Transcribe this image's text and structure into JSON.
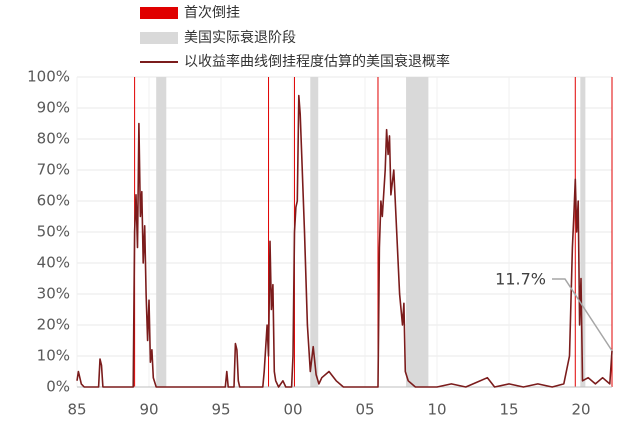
{
  "chart_data": {
    "type": "line",
    "legend": {
      "inversions": "首次倒挂",
      "recessions": "美国实际衰退阶段"
    },
    "inversions": {
      "color": "#e00000",
      "values": [
        1989.0,
        1998.3,
        2000.1,
        2005.9,
        2019.6,
        2022.15
      ]
    },
    "recessions": {
      "color": "#d9d9d9",
      "values": [
        [
          1990.5,
          1991.2
        ],
        [
          2001.2,
          2001.75
        ],
        [
          2007.85,
          2009.4
        ],
        [
          2019.95,
          2020.3
        ]
      ]
    },
    "x": [
      1985.0,
      1985.1,
      1985.3,
      1985.5,
      1986.5,
      1986.6,
      1986.7,
      1986.8,
      1988.9,
      1989.0,
      1989.1,
      1989.2,
      1989.3,
      1989.4,
      1989.5,
      1989.6,
      1989.7,
      1989.8,
      1989.9,
      1990.0,
      1990.1,
      1990.2,
      1990.3,
      1990.5,
      1995.3,
      1995.4,
      1995.5,
      1995.9,
      1996.0,
      1996.1,
      1996.2,
      1996.3,
      1997.9,
      1998.0,
      1998.2,
      1998.3,
      1998.4,
      1998.5,
      1998.6,
      1998.7,
      1998.8,
      1999.0,
      1999.3,
      1999.5,
      1999.9,
      2000.0,
      2000.1,
      2000.2,
      2000.3,
      2000.4,
      2000.5,
      2000.6,
      2000.8,
      2001.0,
      2001.2,
      2001.4,
      2001.6,
      2001.8,
      2002.0,
      2002.5,
      2003.0,
      2003.5,
      2005.9,
      2006.0,
      2006.1,
      2006.2,
      2006.4,
      2006.5,
      2006.6,
      2006.7,
      2006.8,
      2007.0,
      2007.2,
      2007.4,
      2007.6,
      2007.7,
      2007.8,
      2008.0,
      2008.5,
      2010.0,
      2011.0,
      2012.0,
      2013.5,
      2014.0,
      2015.0,
      2016.0,
      2017.0,
      2018.0,
      2018.8,
      2019.2,
      2019.4,
      2019.5,
      2019.6,
      2019.7,
      2019.8,
      2019.9,
      2020.0,
      2020.1,
      2020.5,
      2021.0,
      2021.5,
      2022.0,
      2022.15
    ],
    "series": [
      {
        "name": "以收益率曲线倒挂程度估算的美国衰退概率",
        "color": "#7b1c1c",
        "values": [
          2,
          5,
          1,
          0,
          0,
          9,
          7,
          0,
          0,
          50,
          62,
          45,
          85,
          55,
          63,
          40,
          52,
          30,
          15,
          28,
          8,
          12,
          3,
          0,
          0,
          5,
          0,
          0,
          14,
          12,
          2,
          0,
          0,
          5,
          20,
          10,
          47,
          25,
          33,
          5,
          2,
          0,
          2,
          0,
          0,
          10,
          50,
          58,
          60,
          94,
          88,
          75,
          50,
          20,
          5,
          13,
          4,
          1,
          3,
          5,
          2,
          0,
          0,
          45,
          60,
          55,
          70,
          83,
          75,
          81,
          62,
          70,
          50,
          30,
          20,
          27,
          5,
          2,
          0,
          0,
          1,
          0,
          3,
          0,
          1,
          0,
          1,
          0,
          1,
          10,
          45,
          55,
          67,
          50,
          60,
          20,
          35,
          2,
          3,
          1,
          3,
          1,
          11.7
        ]
      }
    ],
    "annotations": [
      {
        "x": 2022.15,
        "y": 11.7,
        "label": "11.7%"
      }
    ],
    "xlim": [
      1985,
      2022.15
    ],
    "xticks": [
      {
        "value": 1985,
        "label": "85"
      },
      {
        "value": 1990,
        "label": "90"
      },
      {
        "value": 1995,
        "label": "95"
      },
      {
        "value": 2000,
        "label": "00"
      },
      {
        "value": 2005,
        "label": "05"
      },
      {
        "value": 2010,
        "label": "10"
      },
      {
        "value": 2015,
        "label": "15"
      },
      {
        "value": 2020,
        "label": "20"
      }
    ],
    "ylim": [
      0,
      100
    ],
    "yticks": [
      {
        "value": 0,
        "label": "0%"
      },
      {
        "value": 10,
        "label": "10%"
      },
      {
        "value": 20,
        "label": "20%"
      },
      {
        "value": 30,
        "label": "30%"
      },
      {
        "value": 40,
        "label": "40%"
      },
      {
        "value": 50,
        "label": "50%"
      },
      {
        "value": 60,
        "label": "60%"
      },
      {
        "value": 70,
        "label": "70%"
      },
      {
        "value": 80,
        "label": "80%"
      },
      {
        "value": 90,
        "label": "90%"
      },
      {
        "value": 100,
        "label": "100%"
      }
    ],
    "grid": true
  }
}
